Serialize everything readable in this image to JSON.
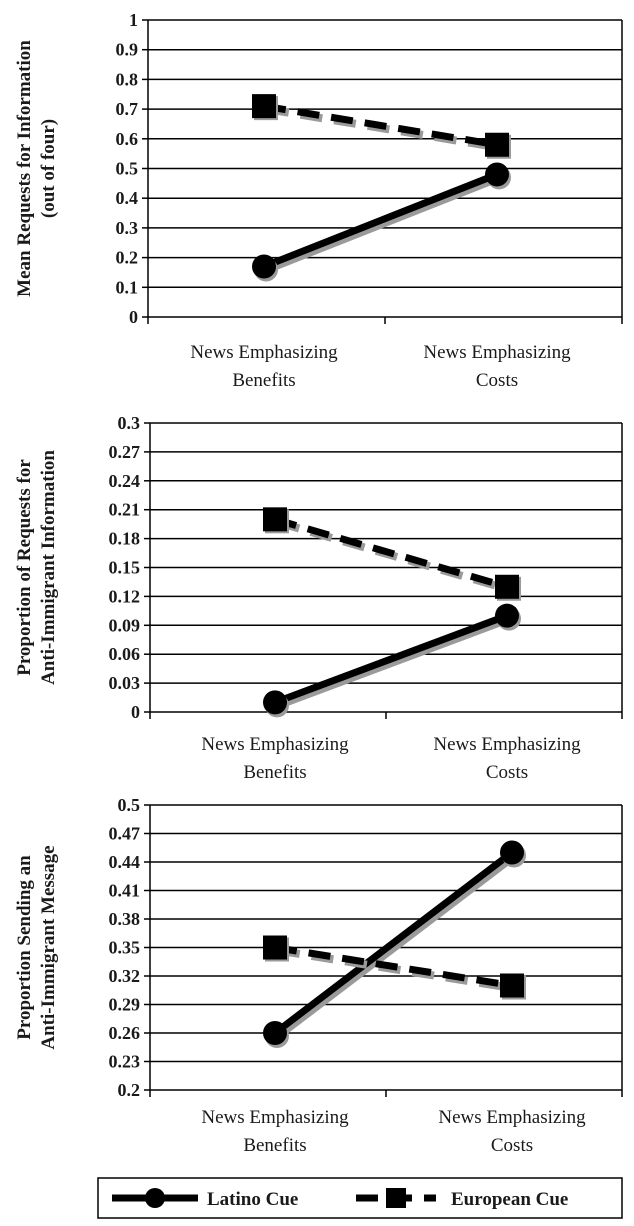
{
  "chart_data": [
    {
      "type": "line",
      "title": "",
      "ylabel": [
        "Mean Requests for Information",
        "(out of four)"
      ],
      "categories": [
        [
          "News Emphasizing",
          "Benefits"
        ],
        [
          "News Emphasizing",
          "Costs"
        ]
      ],
      "ylim": [
        0,
        1
      ],
      "yticks": [
        "0",
        "0.1",
        "0.2",
        "0.3",
        "0.4",
        "0.5",
        "0.6",
        "0.7",
        "0.8",
        "0.9",
        "1"
      ],
      "grid": true,
      "series": [
        {
          "name": "Latino Cue",
          "values": [
            0.17,
            0.48
          ]
        },
        {
          "name": "European Cue",
          "values": [
            0.71,
            0.58
          ]
        }
      ]
    },
    {
      "type": "line",
      "title": "",
      "ylabel": [
        "Proportion of Requests for",
        "Anti-Immigrant Information"
      ],
      "categories": [
        [
          "News Emphasizing",
          "Benefits"
        ],
        [
          "News Emphasizing",
          "Costs"
        ]
      ],
      "ylim": [
        0,
        0.3
      ],
      "yticks": [
        "0",
        "0.03",
        "0.06",
        "0.09",
        "0.12",
        "0.15",
        "0.18",
        "0.21",
        "0.24",
        "0.27",
        "0.3"
      ],
      "grid": true,
      "series": [
        {
          "name": "Latino Cue",
          "values": [
            0.01,
            0.1
          ]
        },
        {
          "name": "European Cue",
          "values": [
            0.2,
            0.13
          ]
        }
      ]
    },
    {
      "type": "line",
      "title": "",
      "ylabel": [
        "Proportion Sending an",
        "Anti-Immigrant Message"
      ],
      "categories": [
        [
          "News Emphasizing",
          "Benefits"
        ],
        [
          "News Emphasizing",
          "Costs"
        ]
      ],
      "ylim": [
        0.2,
        0.5
      ],
      "yticks": [
        "0.2",
        "0.23",
        "0.26",
        "0.29",
        "0.32",
        "0.35",
        "0.38",
        "0.41",
        "0.44",
        "0.47",
        "0.5"
      ],
      "grid": true,
      "series": [
        {
          "name": "Latino Cue",
          "values": [
            0.26,
            0.45
          ]
        },
        {
          "name": "European Cue",
          "values": [
            0.35,
            0.31
          ]
        }
      ]
    }
  ],
  "legend": {
    "placement": "bottom",
    "items": [
      {
        "label": "Latino Cue",
        "line": "solid",
        "marker": "circle"
      },
      {
        "label": "European Cue",
        "line": "dashed",
        "marker": "square"
      }
    ]
  }
}
